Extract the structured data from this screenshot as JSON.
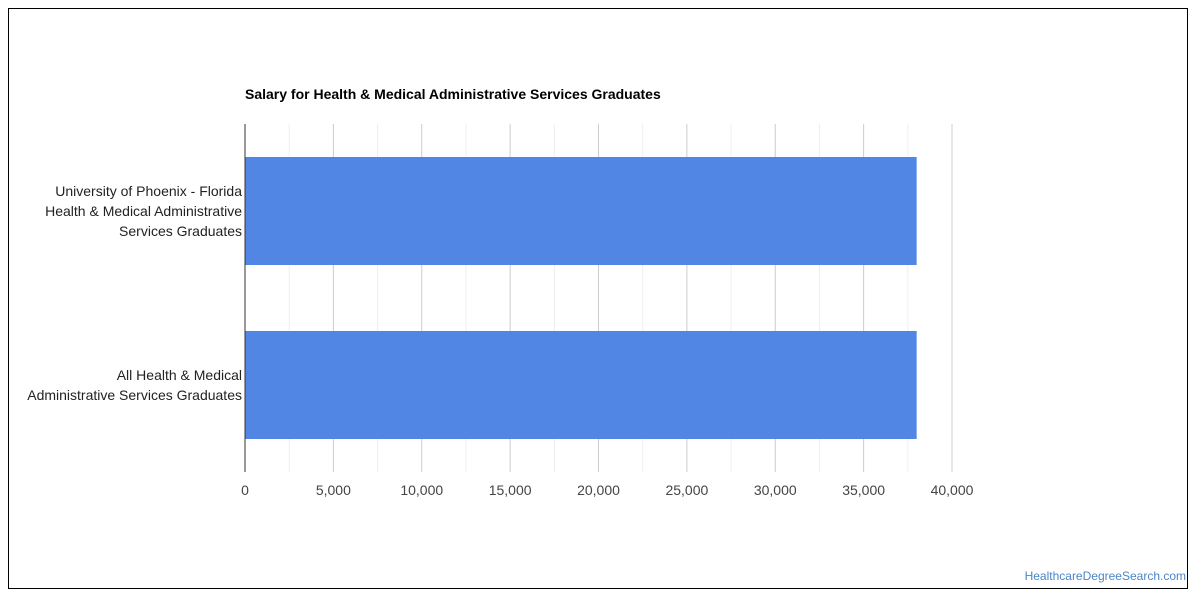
{
  "chart_data": {
    "type": "bar",
    "orientation": "horizontal",
    "title": "Salary for Health & Medical Administrative Services Graduates",
    "categories": [
      [
        "University of Phoenix - Florida",
        "Health & Medical Administrative",
        "Services Graduates"
      ],
      [
        "All Health & Medical",
        "Administrative Services Graduates"
      ]
    ],
    "values": [
      38000,
      38000
    ],
    "xlim": [
      0,
      40000
    ],
    "xticks": [
      "0",
      "5,000",
      "10,000",
      "15,000",
      "20,000",
      "25,000",
      "30,000",
      "35,000",
      "40,000"
    ],
    "xlabel": "",
    "ylabel": "",
    "grid": true,
    "bar_color": "#5186e4"
  },
  "watermark": "HealthcareDegreeSearch.com"
}
